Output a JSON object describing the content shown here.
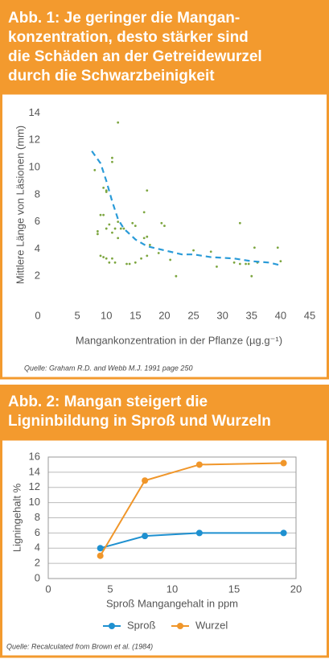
{
  "chart_data": [
    {
      "type": "scatter",
      "title": [
        "Abb. 1: Je geringer die Mangan-",
        "konzentration, desto stärker sind",
        "die Schäden an der Getreidewurzel",
        "durch die Schwarzbeinigkeit"
      ],
      "xlabel": "Mangankonzentration in der Pflanze (µg.g⁻¹)",
      "ylabel": "Mittlere Länge von Läsionen (mm)",
      "source": "Quelle: Graham R.D. and Webb M.J. 1991 page 250",
      "xlim": [
        0,
        45
      ],
      "xticks": [
        0,
        5,
        10,
        15,
        20,
        25,
        30,
        35,
        40,
        45
      ],
      "ylim": [
        0,
        14.5
      ],
      "yticks": [
        2,
        4,
        6,
        8,
        10,
        12,
        14
      ],
      "points": {
        "color": "#7da640",
        "x": [
          8,
          8.5,
          8.5,
          9,
          9,
          9.5,
          9.5,
          9.5,
          10,
          10,
          10,
          10,
          10.5,
          10.5,
          11,
          11,
          11,
          11,
          11.5,
          11.5,
          12,
          12,
          12,
          12.5,
          13,
          13.5,
          14,
          14.5,
          15,
          15,
          16,
          16.5,
          16.5,
          17,
          17,
          17,
          17.5,
          19,
          19.5,
          20,
          21,
          22,
          25,
          28,
          29,
          32,
          33,
          33,
          34,
          34.5,
          35,
          35.5,
          36,
          39.5,
          40
        ],
        "y": [
          9.8,
          5.3,
          5.1,
          6.5,
          3.5,
          8.5,
          6.5,
          3.4,
          8.2,
          8.3,
          5.5,
          3.3,
          5.8,
          3,
          10.7,
          10.4,
          5.2,
          3.3,
          3,
          5.5,
          13.3,
          6,
          4.8,
          5.5,
          5.5,
          2.9,
          2.9,
          5.9,
          5.7,
          3,
          3.3,
          4.8,
          6.7,
          8.3,
          4.9,
          3.5,
          4.3,
          3.7,
          5.9,
          5.7,
          3.2,
          2,
          3.9,
          3.8,
          2.7,
          3,
          5.9,
          2.9,
          2.9,
          2.9,
          2,
          4.1,
          3,
          4.1,
          3.1
        ]
      },
      "trend": {
        "color": "#2a9bd8",
        "dashed": true,
        "x": [
          7.5,
          9,
          10,
          11,
          12,
          13,
          15,
          17,
          20,
          23,
          25,
          28,
          32,
          35,
          38,
          40
        ],
        "y": [
          11.2,
          10.3,
          9,
          7.5,
          6.2,
          5.5,
          4.7,
          4.2,
          3.9,
          3.6,
          3.6,
          3.4,
          3.3,
          3.1,
          3,
          2.8
        ]
      }
    },
    {
      "type": "line",
      "title": [
        "Abb. 2: Mangan steigert die",
        "Ligninbildung in Sproß und Wurzeln"
      ],
      "xlabel": "Sproß Mangangehalt in ppm",
      "ylabel": "Ligningehalt %",
      "source": "Quelle: Recalculated from Brown et al. (1984)",
      "xlim": [
        0,
        20
      ],
      "xticks": [
        0,
        5,
        10,
        15,
        20
      ],
      "ylim": [
        0,
        16
      ],
      "yticks": [
        0,
        2,
        4,
        6,
        8,
        10,
        12,
        14,
        16
      ],
      "grid": true,
      "x": [
        4.2,
        7.8,
        12.2,
        19
      ],
      "series": [
        {
          "name": "Sproß",
          "color": "#1e90d0",
          "values": [
            4,
            5.6,
            6,
            6
          ]
        },
        {
          "name": "Wurzel",
          "color": "#f0962a",
          "values": [
            3,
            12.9,
            15,
            15.2
          ]
        }
      ]
    }
  ]
}
